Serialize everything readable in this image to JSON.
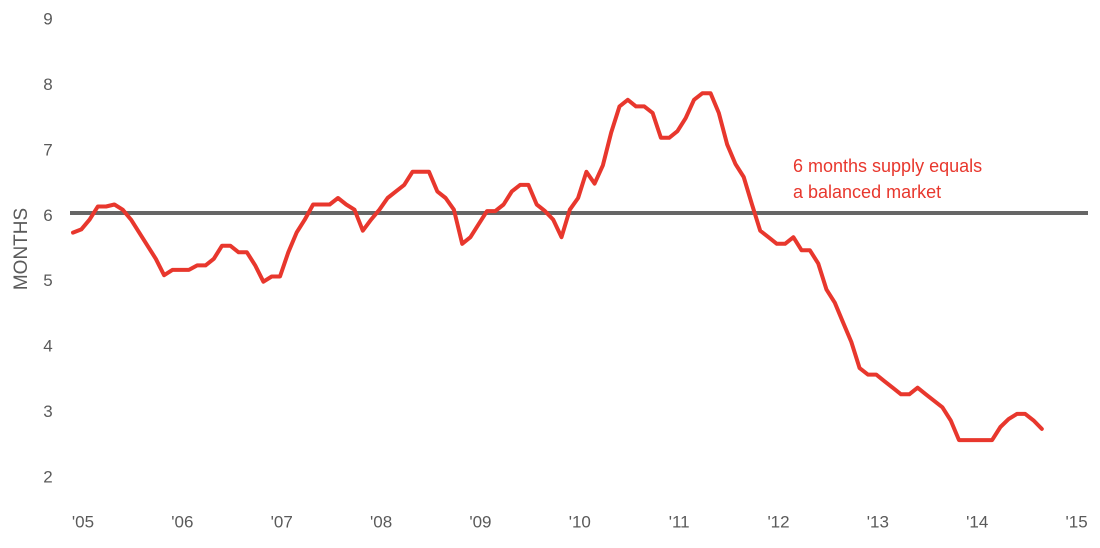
{
  "chart_data": {
    "type": "line",
    "y_label": "MONTHS",
    "categories": [
      "'05",
      null,
      null,
      null,
      null,
      null,
      null,
      null,
      null,
      null,
      null,
      null,
      "'06",
      null,
      null,
      null,
      null,
      null,
      null,
      null,
      null,
      null,
      null,
      null,
      "'07",
      null,
      null,
      null,
      null,
      null,
      null,
      null,
      null,
      null,
      null,
      null,
      "'08",
      null,
      null,
      null,
      null,
      null,
      null,
      null,
      null,
      null,
      null,
      null,
      "'09",
      null,
      null,
      null,
      null,
      null,
      null,
      null,
      null,
      null,
      null,
      null,
      "'10",
      null,
      null,
      null,
      null,
      null,
      null,
      null,
      null,
      null,
      null,
      null,
      "'11",
      null,
      null,
      null,
      null,
      null,
      null,
      null,
      null,
      null,
      null,
      null,
      "'12",
      null,
      null,
      null,
      null,
      null,
      null,
      null,
      null,
      null,
      null,
      null,
      "'13",
      null,
      null,
      null,
      null,
      null,
      null,
      null,
      null,
      null,
      null,
      null,
      "'14",
      null,
      null,
      null,
      null,
      null,
      null,
      null,
      null,
      null,
      null,
      null,
      "'15"
    ],
    "series": [
      {
        "color": "#e8372d",
        "values": [
          5.75,
          5.8,
          5.95,
          6.15,
          6.15,
          6.18,
          6.1,
          5.95,
          5.75,
          5.55,
          5.35,
          5.1,
          5.18,
          5.18,
          5.18,
          5.25,
          5.25,
          5.35,
          5.55,
          5.55,
          5.45,
          5.45,
          5.25,
          5.0,
          5.08,
          5.08,
          5.45,
          5.75,
          5.95,
          6.18,
          6.18,
          6.18,
          6.28,
          6.18,
          6.1,
          5.78,
          5.95,
          6.1,
          6.28,
          6.38,
          6.48,
          6.68,
          6.68,
          6.68,
          6.38,
          6.28,
          6.1,
          5.58,
          5.68,
          5.88,
          6.08,
          6.08,
          6.18,
          6.38,
          6.48,
          6.48,
          6.18,
          6.08,
          5.95,
          5.68,
          6.1,
          6.28,
          6.68,
          6.5,
          6.78,
          7.28,
          7.68,
          7.78,
          7.68,
          7.68,
          7.58,
          7.2,
          7.2,
          7.3,
          7.5,
          7.78,
          7.88,
          7.88,
          7.58,
          7.1,
          6.8,
          6.6,
          6.18,
          5.78,
          5.68,
          5.58,
          5.58,
          5.68,
          5.48,
          5.48,
          5.28,
          4.88,
          4.68,
          4.38,
          4.08,
          3.68,
          3.58,
          3.58,
          3.48,
          3.38,
          3.28,
          3.28,
          3.38,
          3.28,
          3.18,
          3.08,
          2.88,
          2.58,
          2.58,
          2.58,
          2.58,
          2.58,
          2.78,
          2.9,
          2.98,
          2.98,
          2.88,
          2.75,
          null,
          null,
          null
        ]
      }
    ],
    "ylim": [
      2,
      9
    ],
    "yticks": [
      2,
      3,
      4,
      5,
      6,
      7,
      8,
      9
    ],
    "grid": false,
    "reference_line": {
      "value": 6.05,
      "color": "#666666"
    },
    "annotation": [
      "6 months supply equals",
      "a balanced market"
    ]
  }
}
